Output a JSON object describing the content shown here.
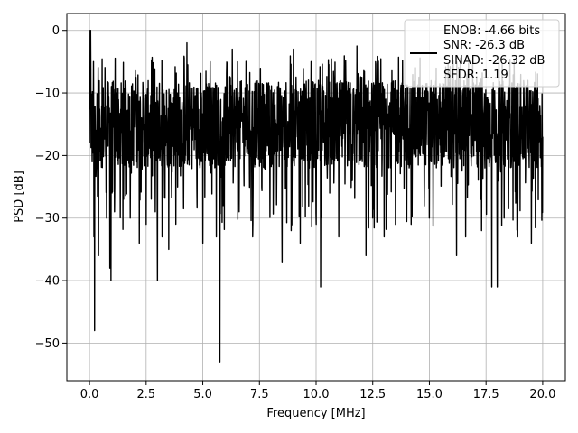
{
  "chart_data": {
    "type": "line",
    "title": "",
    "xlabel": "Frequency [MHz]",
    "ylabel": "PSD [dB]",
    "xlim": [
      -1.0,
      21.0
    ],
    "ylim": [
      -56.0,
      2.7
    ],
    "xticks": [
      0.0,
      2.5,
      5.0,
      7.5,
      10.0,
      12.5,
      15.0,
      17.5,
      20.0
    ],
    "xtick_labels": [
      "0.0",
      "2.5",
      "5.0",
      "7.5",
      "10.0",
      "12.5",
      "15.0",
      "17.5",
      "20.0"
    ],
    "yticks": [
      0,
      -10,
      -20,
      -30,
      -40,
      -50
    ],
    "ytick_labels": [
      "0",
      "−10",
      "−20",
      "−30",
      "−40",
      "−50"
    ],
    "grid": true,
    "legend_position": "top-right",
    "series_color": "#000000",
    "legend": {
      "lines": [
        "ENOB: -4.66 bits",
        "SNR: -26.3 dB",
        "SINAD: -26.32 dB",
        "SFDR: 1.19"
      ]
    },
    "series": [
      {
        "name": "ENOB: -4.66 bits\nSNR: -26.3 dB\nSINAD: -26.32 dB\nSFDR: 1.19",
        "x_range": [
          0.0,
          20.0
        ],
        "points": 2048,
        "typical_range": [
          -22,
          -8
        ],
        "peak": [
          0.05,
          0.0
        ],
        "notable_points": [
          [
            0.0,
            -18
          ],
          [
            0.03,
            0.0
          ],
          [
            0.06,
            -6
          ],
          [
            0.12,
            -21
          ],
          [
            0.2,
            -33
          ],
          [
            0.22,
            -48
          ],
          [
            0.3,
            -22
          ],
          [
            0.4,
            -36
          ],
          [
            0.55,
            -17
          ],
          [
            0.75,
            -30
          ],
          [
            0.9,
            -38
          ],
          [
            0.95,
            -40
          ],
          [
            1.1,
            -29
          ],
          [
            1.5,
            -27
          ],
          [
            1.8,
            -30
          ],
          [
            2.2,
            -34
          ],
          [
            2.5,
            -31
          ],
          [
            2.9,
            -29
          ],
          [
            3.0,
            -40
          ],
          [
            3.2,
            -33
          ],
          [
            3.5,
            -35
          ],
          [
            4.3,
            -2
          ],
          [
            5.0,
            -34
          ],
          [
            5.3,
            -9
          ],
          [
            5.6,
            -33
          ],
          [
            5.75,
            -53
          ],
          [
            5.9,
            -28
          ],
          [
            6.3,
            -3
          ],
          [
            6.6,
            -29
          ],
          [
            7.2,
            -33
          ],
          [
            7.6,
            -25
          ],
          [
            8.5,
            -37
          ],
          [
            8.9,
            -32
          ],
          [
            9.0,
            -3
          ],
          [
            9.3,
            -34
          ],
          [
            10.0,
            -31
          ],
          [
            10.2,
            -41
          ],
          [
            10.6,
            -26
          ],
          [
            11.0,
            -33
          ],
          [
            11.6,
            -24
          ],
          [
            11.8,
            -2.5
          ],
          [
            12.2,
            -36
          ],
          [
            12.5,
            -30
          ],
          [
            13.0,
            -33
          ],
          [
            13.5,
            -31
          ],
          [
            14.2,
            -31
          ],
          [
            15.0,
            -30
          ],
          [
            16.2,
            -36
          ],
          [
            16.6,
            -33
          ],
          [
            17.3,
            -32
          ],
          [
            17.75,
            -41
          ],
          [
            18.0,
            -41
          ],
          [
            18.3,
            -30
          ],
          [
            18.9,
            -33
          ],
          [
            19.5,
            -34
          ],
          [
            20.0,
            -17
          ]
        ]
      }
    ]
  }
}
